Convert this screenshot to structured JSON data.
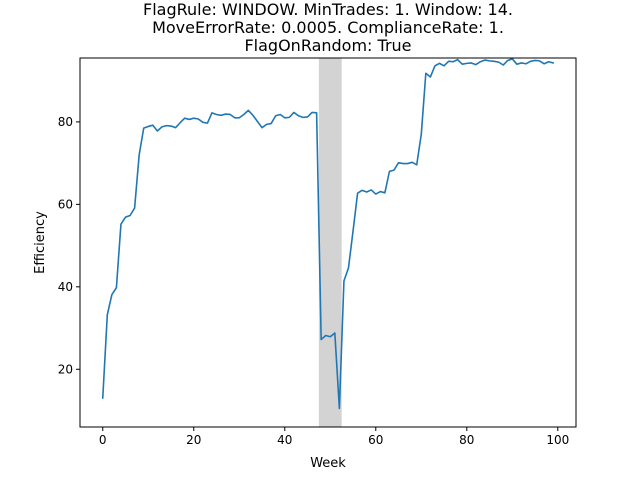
{
  "chart_data": {
    "type": "line",
    "title_lines": [
      "FlagRule: WINDOW. MinTrades: 1. Window: 14.",
      "MoveErrorRate: 0.0005. ComplianceRate: 1.",
      "FlagOnRandom: True"
    ],
    "xlabel": "Week",
    "ylabel": "Efficiency",
    "xlim": [
      -5,
      104
    ],
    "ylim": [
      6,
      95.5
    ],
    "xticks": [
      0,
      20,
      40,
      60,
      80,
      100
    ],
    "yticks": [
      20,
      40,
      60,
      80
    ],
    "grid": false,
    "shaded_span": [
      47.5,
      52.5
    ],
    "series": [
      {
        "color": "#1f77b4",
        "x": [
          0,
          1,
          2,
          3,
          4,
          5,
          6,
          7,
          8,
          9,
          10,
          11,
          12,
          13,
          14,
          15,
          16,
          17,
          18,
          19,
          20,
          21,
          22,
          23,
          24,
          25,
          26,
          27,
          28,
          29,
          30,
          31,
          32,
          33,
          34,
          35,
          36,
          37,
          38,
          39,
          40,
          41,
          42,
          43,
          44,
          45,
          46,
          47,
          48,
          49,
          50,
          51,
          52,
          53,
          54,
          55,
          56,
          57,
          58,
          59,
          60,
          61,
          62,
          63,
          64,
          65,
          66,
          67,
          68,
          69,
          70,
          71,
          72,
          73,
          74,
          75,
          76,
          77,
          78,
          79,
          80,
          81,
          82,
          83,
          84,
          85,
          86,
          87,
          88,
          89,
          90,
          91,
          92,
          93,
          94,
          95,
          96,
          97,
          98,
          99
        ],
        "values": [
          13,
          33.2,
          38.1,
          39.8,
          55.2,
          56.9,
          57.3,
          59.1,
          72,
          78.5,
          78.9,
          79.2,
          77.8,
          78.8,
          79.1,
          79,
          78.6,
          79.8,
          80.9,
          80.6,
          80.9,
          80.7,
          79.9,
          79.7,
          82.2,
          81.8,
          81.6,
          81.9,
          81.8,
          81,
          81,
          81.8,
          82.8,
          81.6,
          80.1,
          78.6,
          79.4,
          79.6,
          81.5,
          81.8,
          81,
          81.1,
          82.3,
          81.5,
          81.1,
          81.2,
          82.3,
          82.2,
          27.2,
          28.2,
          27.9,
          28.8,
          10.5,
          41.4,
          44.6,
          53.5,
          62.7,
          63.4,
          63,
          63.5,
          62.5,
          63.1,
          62.8,
          68,
          68.3,
          70.1,
          69.9,
          69.9,
          70.2,
          69.6,
          77,
          91.8,
          90.9,
          93.6,
          94.2,
          93.6,
          94.7,
          94.6,
          95.1,
          94,
          94.2,
          94.3,
          93.9,
          94.6,
          95,
          94.8,
          94.7,
          94.5,
          93.8,
          94.9,
          95.3,
          94,
          94.3,
          94.1,
          94.7,
          94.9,
          94.8,
          94.1,
          94.6,
          94.3
        ]
      }
    ]
  }
}
